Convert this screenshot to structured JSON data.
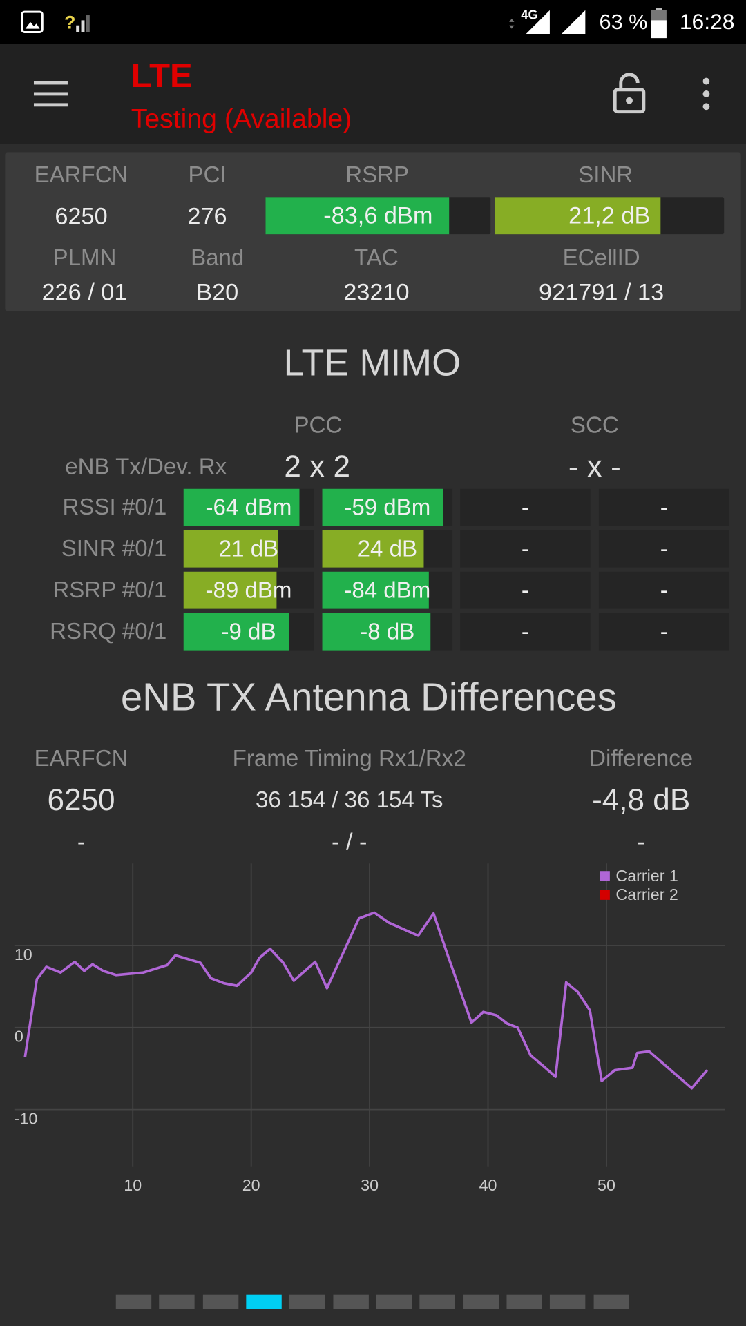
{
  "status_bar": {
    "network": "4G",
    "battery": "63 %",
    "time": "16:28"
  },
  "header": {
    "title": "LTE",
    "subtitle": "Testing (Available)"
  },
  "cell_info": {
    "labels_row1": [
      "EARFCN",
      "PCI",
      "RSRP",
      "SINR"
    ],
    "values_row1": [
      "6250",
      "276",
      "-83,6 dBm",
      "21,2 dB"
    ],
    "labels_row2": [
      "PLMN",
      "Band",
      "TAC",
      "ECellID"
    ],
    "values_row2": [
      "226 / 01",
      "B20",
      "23210",
      "921791 / 13"
    ]
  },
  "mimo": {
    "title": "LTE MIMO",
    "columns": [
      "PCC",
      "SCC"
    ],
    "config_label": "eNB Tx/Dev. Rx",
    "config": [
      "2 x 2",
      "- x -"
    ],
    "rows": [
      {
        "label": "RSSI #0/1",
        "cells": [
          "-64 dBm",
          "-59 dBm",
          "-",
          "-"
        ]
      },
      {
        "label": "SINR #0/1",
        "cells": [
          "21 dB",
          "24 dB",
          "-",
          "-"
        ]
      },
      {
        "label": "RSRP #0/1",
        "cells": [
          "-89 dBm",
          "-84 dBm",
          "-",
          "-"
        ]
      },
      {
        "label": "RSRQ #0/1",
        "cells": [
          "-9 dB",
          "-8 dB",
          "-",
          "-"
        ]
      }
    ]
  },
  "antenna": {
    "title": "eNB TX Antenna Differences",
    "headers": [
      "EARFCN",
      "Frame Timing Rx1/Rx2",
      "Difference"
    ],
    "row1": [
      "6250",
      "36 154 / 36 154 Ts",
      "-4,8 dB"
    ],
    "row2": [
      "-",
      "- / -",
      "-"
    ]
  },
  "chart_data": {
    "type": "line",
    "x": [
      0.9,
      1.9,
      2.7,
      3.9,
      5.1,
      5.9,
      6.6,
      7.5,
      8.6,
      10.9,
      12.9,
      13.6,
      15.7,
      16.6,
      17.7,
      18.8,
      20.0,
      20.7,
      21.6,
      22.7,
      23.6,
      25.4,
      26.4,
      29.1,
      30.4,
      31.6,
      34.1,
      35.4,
      36.6,
      38.6,
      39.6,
      40.7,
      41.6,
      42.5,
      43.6,
      44.6,
      45.7,
      46.6,
      47.6,
      48.6,
      49.6,
      50.7,
      52.2,
      52.6,
      53.6,
      57.2,
      58.5
    ],
    "series": [
      {
        "name": "Carrier 1",
        "color": "#b066d6",
        "values": [
          -3.6,
          5.9,
          7.4,
          6.7,
          8.0,
          6.9,
          7.7,
          6.9,
          6.4,
          6.7,
          7.6,
          8.8,
          7.9,
          6.0,
          5.4,
          5.1,
          6.7,
          8.5,
          9.6,
          7.9,
          5.7,
          8.0,
          4.8,
          13.3,
          14.0,
          12.8,
          11.2,
          13.9,
          8.8,
          0.6,
          1.9,
          1.5,
          0.5,
          0.0,
          -3.4,
          -4.6,
          -6.0,
          5.5,
          4.3,
          2.1,
          -6.5,
          -5.2,
          -4.9,
          -3.1,
          -2.9,
          -7.4,
          -5.2
        ]
      },
      {
        "name": "Carrier 2",
        "color": "#d40000",
        "values": [
          null,
          null,
          null,
          null,
          null,
          null,
          null,
          null,
          null,
          null,
          null,
          null,
          null,
          null,
          null,
          null,
          null,
          null,
          null,
          null,
          null,
          null,
          null,
          null,
          null,
          null,
          null,
          null,
          null,
          null,
          null,
          null,
          null,
          null,
          null,
          null,
          null,
          null,
          null,
          null,
          null,
          null,
          null,
          null,
          null,
          null,
          null
        ]
      }
    ],
    "xlim": [
      0,
      60
    ],
    "xticks": [
      10,
      20,
      30,
      40,
      50
    ],
    "ylim": [
      -17,
      20
    ],
    "yticks": [
      -10,
      0,
      10
    ],
    "grid": true,
    "legend": "top-right"
  }
}
